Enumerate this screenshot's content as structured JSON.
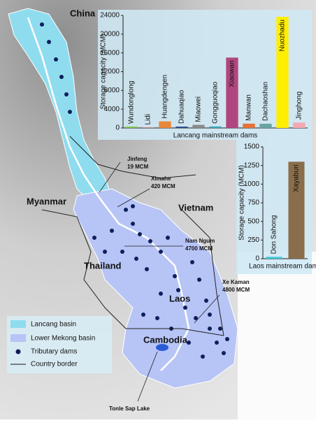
{
  "map": {
    "countries": [
      "China",
      "Myanmar",
      "Vietnam",
      "Thailand",
      "Laos",
      "Cambodia"
    ],
    "lake": "Tonle Sap Lake",
    "annotations": [
      {
        "name": "Jinfeng",
        "capacity": "19 MCM"
      },
      {
        "name": "Ximahe",
        "capacity": "420 MCM"
      },
      {
        "name": "Nam Ngum",
        "capacity": "4700 MCM"
      },
      {
        "name": "Xe Kaman",
        "capacity": "4800 MCM"
      }
    ],
    "legend": [
      "Lancang basin",
      "Lower Mekong basin",
      "Tributary dams",
      "Country border"
    ]
  },
  "chart_data": [
    {
      "type": "bar",
      "title": "Lancang mainstream dams",
      "y_label": "Storage capacity (MCM)",
      "categories": [
        "Wundonglong",
        "Lidi",
        "Huangdengen",
        "Dahuaqiao",
        "Miaowei",
        "Gongguoqiao",
        "Xiaowan",
        "Manwan",
        "Dachaoshan",
        "Nuozhadu",
        "Jinghong"
      ],
      "values": [
        280,
        75,
        1400,
        290,
        660,
        320,
        15000,
        920,
        890,
        23700,
        1140
      ],
      "colors": [
        "#7cc242",
        "#c0392b",
        "#e8883a",
        "#2d4a8a",
        "#8a8a8a",
        "#3aa6b9",
        "#b0467f",
        "#e8703a",
        "#6aa3a3",
        "#ffee00",
        "#f4a9b0"
      ],
      "ylim": [
        0,
        24000
      ],
      "yticks": [
        0,
        4000,
        8000,
        12000,
        16000,
        20000,
        24000
      ]
    },
    {
      "type": "bar",
      "title": "Laos mainstream dams",
      "y_label": "Storage capacity (MCM)",
      "categories": [
        "Don Sahong",
        "Xayaburi"
      ],
      "values": [
        25,
        1300
      ],
      "colors": [
        "#3ec7d8",
        "#8a6d4a"
      ],
      "ylim": [
        0,
        1500
      ],
      "yticks": [
        0,
        250,
        500,
        750,
        1000,
        1250,
        1500
      ]
    }
  ]
}
